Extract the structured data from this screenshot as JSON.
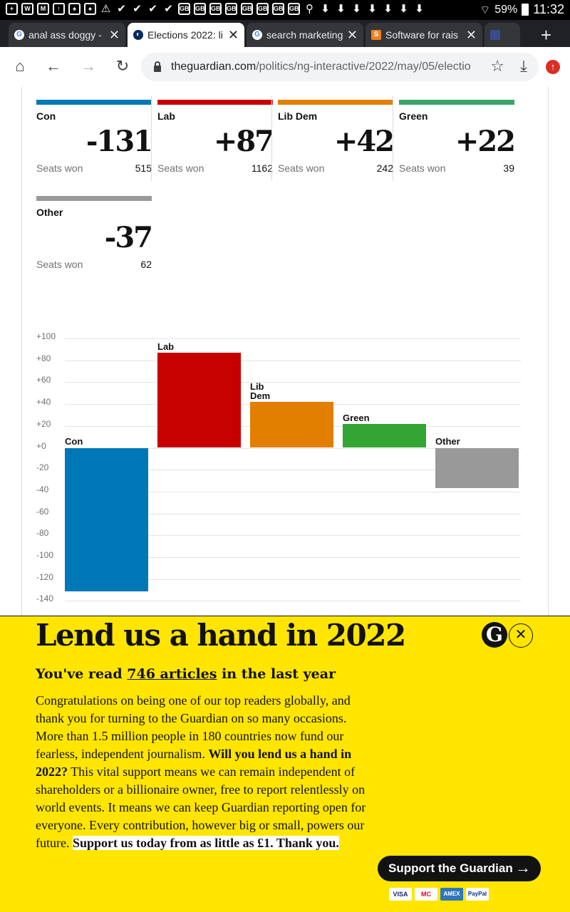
{
  "statusbar": {
    "icons": [
      "+",
      "W",
      "M",
      "↑",
      "♠",
      "♠",
      "⚠",
      "✔",
      "✔",
      "✔",
      "✔",
      "GB",
      "GB",
      "GB",
      "GB",
      "GB",
      "GB",
      "GB",
      "GB",
      "⚲",
      "⬇",
      "⬇",
      "⬇",
      "⬇",
      "⬇",
      "⬇",
      "⬇"
    ],
    "battery": "59%",
    "time": "11:32"
  },
  "tabs": [
    {
      "title": "anal ass doggy -",
      "favicon": "G",
      "active": false
    },
    {
      "title": "Elections 2022: li",
      "favicon": "◐",
      "active": true
    },
    {
      "title": "search marketing",
      "favicon": "G",
      "active": false
    },
    {
      "title": "Software for rais",
      "favicon": "S",
      "active": false
    }
  ],
  "addressbar": {
    "domain": "theguardian.com",
    "path": "/politics/ng-interactive/2022/may/05/electio"
  },
  "parties": [
    {
      "name": "Con",
      "change": "-131",
      "seats_label": "Seats won",
      "seats": "515",
      "color": "#0077b6"
    },
    {
      "name": "Lab",
      "change": "+87",
      "seats_label": "Seats won",
      "seats": "1162",
      "color": "#c70000"
    },
    {
      "name": "Lib Dem",
      "change": "+42",
      "seats_label": "Seats won",
      "seats": "242",
      "color": "#e27f00"
    },
    {
      "name": "Green",
      "change": "+22",
      "seats_label": "Seats won",
      "seats": "39",
      "color": "#39a566"
    },
    {
      "name": "Other",
      "change": "-37",
      "seats_label": "Seats won",
      "seats": "62",
      "color": "#999999"
    }
  ],
  "chart_data": {
    "type": "bar",
    "title": "",
    "xlabel": "",
    "ylabel": "",
    "categories": [
      "Con",
      "Lab",
      "Lib Dem",
      "Green",
      "Other"
    ],
    "display_labels": [
      "Con",
      "Lab",
      "Lib\nDem",
      "Green",
      "Other"
    ],
    "values": [
      -131,
      87,
      42,
      22,
      -37
    ],
    "colors": [
      "#0077b6",
      "#c70000",
      "#e27f00",
      "#33a532",
      "#999999"
    ],
    "ylim": [
      -140,
      100
    ],
    "yticks": [
      "+100",
      "+80",
      "+60",
      "+40",
      "+20",
      "+0",
      "-20",
      "-40",
      "-60",
      "-80",
      "-100",
      "-120",
      "-140"
    ],
    "ytick_values": [
      100,
      80,
      60,
      40,
      20,
      0,
      -20,
      -40,
      -60,
      -80,
      -100,
      -120,
      -140
    ]
  },
  "banner": {
    "headline": "Lend us a hand in 2022",
    "sub_prefix": "You've read ",
    "articles": "746 articles",
    "sub_suffix": " in the last year",
    "body_1": "Congratulations on being one of our top readers globally, and thank you for turning to the Guardian on so many occasions. More than 1.5 million people in 180 countries now fund our fearless, independent journalism. ",
    "body_bold": "Will you lend us a hand in 2022?",
    "body_2": " This vital support means we can remain independent of shareholders or a billionaire owner, free to report relentlessly on world events. It means we can keep Guardian reporting open for everyone. Every contribution, however big or small, powers our future. ",
    "body_highlight": "Support us today from as little as £1. Thank you.",
    "button": "Support the Guardian",
    "logo": "G",
    "payments": [
      "VISA",
      "MC",
      "AMEX",
      "PayPal"
    ]
  }
}
